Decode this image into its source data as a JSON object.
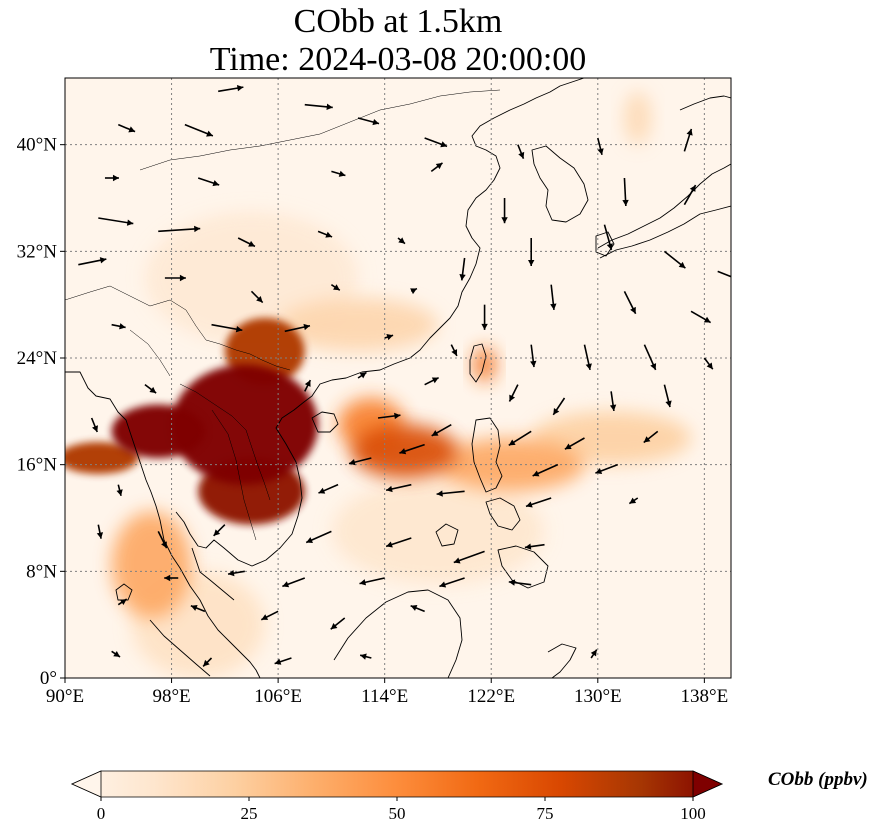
{
  "title": {
    "line1": "CObb at 1.5km",
    "line2": "Time: 2024-03-08 20:00:00"
  },
  "map": {
    "extent": {
      "lon": [
        90,
        140
      ],
      "lat": [
        0,
        45
      ]
    },
    "lon_ticks": [
      {
        "value": 90,
        "label": "90°E"
      },
      {
        "value": 98,
        "label": "98°E"
      },
      {
        "value": 106,
        "label": "106°E"
      },
      {
        "value": 114,
        "label": "114°E"
      },
      {
        "value": 122,
        "label": "122°E"
      },
      {
        "value": 130,
        "label": "130°E"
      },
      {
        "value": 138,
        "label": "138°E"
      }
    ],
    "lat_ticks": [
      {
        "value": 0,
        "label": "0°"
      },
      {
        "value": 8,
        "label": "8°N"
      },
      {
        "value": 16,
        "label": "16°N"
      },
      {
        "value": 24,
        "label": "24°N"
      },
      {
        "value": 32,
        "label": "32°N"
      },
      {
        "value": 40,
        "label": "40°N"
      }
    ],
    "gridlines": true,
    "plumes": [
      {
        "lon": 103.5,
        "lat": 19.0,
        "rlon": 5.5,
        "rlat": 4.5,
        "level": 100
      },
      {
        "lon": 97.0,
        "lat": 18.5,
        "rlon": 3.5,
        "rlat": 2.0,
        "level": 100
      },
      {
        "lon": 104.0,
        "lat": 14.0,
        "rlon": 4.0,
        "rlat": 2.5,
        "level": 95
      },
      {
        "lon": 105.0,
        "lat": 24.5,
        "rlon": 3.0,
        "rlat": 2.5,
        "level": 85
      },
      {
        "lon": 92.5,
        "lat": 16.5,
        "rlon": 3.0,
        "rlat": 1.2,
        "level": 85
      },
      {
        "lon": 115.5,
        "lat": 17.0,
        "rlon": 4.0,
        "rlat": 2.0,
        "level": 75
      },
      {
        "lon": 113.0,
        "lat": 19.0,
        "rlon": 2.5,
        "rlat": 2.0,
        "level": 55
      },
      {
        "lon": 121.5,
        "lat": 23.5,
        "rlon": 0.8,
        "rlat": 1.3,
        "level": 60
      },
      {
        "lon": 96.5,
        "lat": 8.5,
        "rlon": 3.0,
        "rlat": 4.0,
        "level": 40
      },
      {
        "lon": 123.5,
        "lat": 16.0,
        "rlon": 5.5,
        "rlat": 2.0,
        "level": 40
      },
      {
        "lon": 131.0,
        "lat": 18.0,
        "rlon": 6.0,
        "rlat": 2.0,
        "level": 25
      },
      {
        "lon": 112.0,
        "lat": 26.5,
        "rlon": 6.0,
        "rlat": 2.0,
        "level": 22
      },
      {
        "lon": 118.0,
        "lat": 11.0,
        "rlon": 8.0,
        "rlat": 4.0,
        "level": 12
      },
      {
        "lon": 104.0,
        "lat": 30.0,
        "rlon": 8.0,
        "rlat": 5.0,
        "level": 10
      },
      {
        "lon": 133.0,
        "lat": 42.0,
        "rlon": 1.0,
        "rlat": 2.0,
        "level": 20
      },
      {
        "lon": 100.0,
        "lat": 4.0,
        "rlon": 5.0,
        "rlat": 4.0,
        "level": 15
      }
    ],
    "wind_vectors": [
      {
        "lon": 101.5,
        "lat": 44.0,
        "u": 1.8,
        "v": 0.3
      },
      {
        "lon": 108.0,
        "lat": 43.0,
        "u": 2.0,
        "v": -0.2
      },
      {
        "lon": 112.0,
        "lat": 42.0,
        "u": 1.5,
        "v": -0.4
      },
      {
        "lon": 94.0,
        "lat": 41.5,
        "u": 1.2,
        "v": -0.5
      },
      {
        "lon": 99.0,
        "lat": 41.5,
        "u": 2.0,
        "v": -0.8
      },
      {
        "lon": 117.0,
        "lat": 40.5,
        "u": 1.6,
        "v": -0.6
      },
      {
        "lon": 124.0,
        "lat": 40.0,
        "u": 0.4,
        "v": -1.0
      },
      {
        "lon": 130.0,
        "lat": 40.5,
        "u": 0.3,
        "v": -1.2
      },
      {
        "lon": 136.5,
        "lat": 39.5,
        "u": 0.5,
        "v": 1.6
      },
      {
        "lon": 93.0,
        "lat": 37.5,
        "u": 1.0,
        "v": 0.0
      },
      {
        "lon": 100.0,
        "lat": 37.5,
        "u": 1.5,
        "v": -0.5
      },
      {
        "lon": 110.0,
        "lat": 38.0,
        "u": 1.0,
        "v": -0.3
      },
      {
        "lon": 117.5,
        "lat": 38.0,
        "u": 0.8,
        "v": 0.6
      },
      {
        "lon": 123.0,
        "lat": 36.0,
        "u": 0.0,
        "v": -1.8
      },
      {
        "lon": 132.0,
        "lat": 37.5,
        "u": 0.1,
        "v": -2.0
      },
      {
        "lon": 136.5,
        "lat": 35.5,
        "u": 0.8,
        "v": 1.4
      },
      {
        "lon": 92.5,
        "lat": 34.5,
        "u": 2.5,
        "v": -0.4
      },
      {
        "lon": 97.0,
        "lat": 33.5,
        "u": 3.0,
        "v": 0.2
      },
      {
        "lon": 103.0,
        "lat": 33.0,
        "u": 1.2,
        "v": -0.6
      },
      {
        "lon": 109.0,
        "lat": 33.5,
        "u": 1.0,
        "v": -0.4
      },
      {
        "lon": 115.0,
        "lat": 33.0,
        "u": 0.5,
        "v": -0.4
      },
      {
        "lon": 120.0,
        "lat": 31.5,
        "u": -0.2,
        "v": -1.6
      },
      {
        "lon": 125.0,
        "lat": 33.0,
        "u": 0.0,
        "v": -2.0
      },
      {
        "lon": 130.5,
        "lat": 34.0,
        "u": 0.5,
        "v": -1.8
      },
      {
        "lon": 135.0,
        "lat": 32.0,
        "u": 1.5,
        "v": -1.2
      },
      {
        "lon": 139.0,
        "lat": 30.5,
        "u": 1.5,
        "v": -0.6
      },
      {
        "lon": 91.0,
        "lat": 31.0,
        "u": 2.0,
        "v": 0.4
      },
      {
        "lon": 97.5,
        "lat": 30.0,
        "u": 1.5,
        "v": 0.0
      },
      {
        "lon": 104.0,
        "lat": 29.0,
        "u": 0.8,
        "v": -0.8
      },
      {
        "lon": 110.0,
        "lat": 29.5,
        "u": 0.6,
        "v": -0.4
      },
      {
        "lon": 116.0,
        "lat": 29.0,
        "u": 0.4,
        "v": 0.2
      },
      {
        "lon": 121.5,
        "lat": 28.0,
        "u": 0.0,
        "v": -1.8
      },
      {
        "lon": 126.5,
        "lat": 29.5,
        "u": 0.2,
        "v": -1.8
      },
      {
        "lon": 132.0,
        "lat": 29.0,
        "u": 0.8,
        "v": -1.6
      },
      {
        "lon": 137.0,
        "lat": 27.5,
        "u": 1.4,
        "v": -0.8
      },
      {
        "lon": 93.5,
        "lat": 26.5,
        "u": 1.0,
        "v": -0.2
      },
      {
        "lon": 101.0,
        "lat": 26.5,
        "u": 2.2,
        "v": -0.4
      },
      {
        "lon": 106.5,
        "lat": 26.0,
        "u": 1.8,
        "v": 0.4
      },
      {
        "lon": 114.0,
        "lat": 25.5,
        "u": 0.6,
        "v": 0.2
      },
      {
        "lon": 119.0,
        "lat": 25.0,
        "u": 0.4,
        "v": -0.8
      },
      {
        "lon": 125.0,
        "lat": 25.0,
        "u": 0.2,
        "v": -1.6
      },
      {
        "lon": 129.0,
        "lat": 25.0,
        "u": 0.4,
        "v": -1.8
      },
      {
        "lon": 133.5,
        "lat": 25.0,
        "u": 0.8,
        "v": -1.8
      },
      {
        "lon": 138.0,
        "lat": 24.0,
        "u": 0.6,
        "v": -0.8
      },
      {
        "lon": 96.0,
        "lat": 22.0,
        "u": 0.8,
        "v": -0.6
      },
      {
        "lon": 108.0,
        "lat": 21.5,
        "u": 0.4,
        "v": 0.8
      },
      {
        "lon": 112.0,
        "lat": 22.5,
        "u": 0.6,
        "v": 0.4
      },
      {
        "lon": 117.0,
        "lat": 22.0,
        "u": 1.0,
        "v": 0.5
      },
      {
        "lon": 124.0,
        "lat": 22.0,
        "u": -0.6,
        "v": -1.2
      },
      {
        "lon": 127.5,
        "lat": 21.0,
        "u": -0.8,
        "v": -1.2
      },
      {
        "lon": 131.0,
        "lat": 21.5,
        "u": 0.2,
        "v": -1.4
      },
      {
        "lon": 135.0,
        "lat": 22.0,
        "u": 0.4,
        "v": -1.6
      },
      {
        "lon": 92.0,
        "lat": 19.5,
        "u": 0.4,
        "v": -1.0
      },
      {
        "lon": 113.5,
        "lat": 19.5,
        "u": 1.6,
        "v": 0.2
      },
      {
        "lon": 119.0,
        "lat": 19.0,
        "u": -1.4,
        "v": -0.8
      },
      {
        "lon": 125.0,
        "lat": 18.5,
        "u": -1.6,
        "v": -1.0
      },
      {
        "lon": 129.0,
        "lat": 18.0,
        "u": -1.4,
        "v": -0.8
      },
      {
        "lon": 134.5,
        "lat": 18.5,
        "u": -1.0,
        "v": -0.8
      },
      {
        "lon": 113.0,
        "lat": 16.5,
        "u": -1.6,
        "v": -0.4
      },
      {
        "lon": 117.0,
        "lat": 17.5,
        "u": -1.8,
        "v": -0.6
      },
      {
        "lon": 127.0,
        "lat": 16.0,
        "u": -1.8,
        "v": -0.8
      },
      {
        "lon": 131.5,
        "lat": 16.0,
        "u": -1.6,
        "v": -0.6
      },
      {
        "lon": 94.0,
        "lat": 14.5,
        "u": 0.2,
        "v": -0.8
      },
      {
        "lon": 110.5,
        "lat": 14.5,
        "u": -1.4,
        "v": -0.6
      },
      {
        "lon": 116.0,
        "lat": 14.5,
        "u": -1.8,
        "v": -0.4
      },
      {
        "lon": 120.0,
        "lat": 14.0,
        "u": -2.0,
        "v": -0.2
      },
      {
        "lon": 126.5,
        "lat": 13.5,
        "u": -1.8,
        "v": -0.6
      },
      {
        "lon": 133.0,
        "lat": 13.5,
        "u": -0.6,
        "v": -0.4
      },
      {
        "lon": 92.5,
        "lat": 11.5,
        "u": 0.2,
        "v": -1.0
      },
      {
        "lon": 97.0,
        "lat": 11.0,
        "u": 0.6,
        "v": -1.2
      },
      {
        "lon": 102.0,
        "lat": 11.5,
        "u": -0.8,
        "v": -0.8
      },
      {
        "lon": 110.0,
        "lat": 11.0,
        "u": -1.8,
        "v": -0.8
      },
      {
        "lon": 116.0,
        "lat": 10.5,
        "u": -1.8,
        "v": -0.6
      },
      {
        "lon": 121.5,
        "lat": 9.5,
        "u": -2.2,
        "v": -0.8
      },
      {
        "lon": 126.0,
        "lat": 10.0,
        "u": -1.4,
        "v": -0.2
      },
      {
        "lon": 98.5,
        "lat": 7.5,
        "u": -1.0,
        "v": 0.0
      },
      {
        "lon": 103.5,
        "lat": 8.0,
        "u": -1.2,
        "v": -0.2
      },
      {
        "lon": 108.0,
        "lat": 7.5,
        "u": -1.6,
        "v": -0.6
      },
      {
        "lon": 114.0,
        "lat": 7.5,
        "u": -1.8,
        "v": -0.4
      },
      {
        "lon": 120.0,
        "lat": 7.5,
        "u": -1.8,
        "v": -0.6
      },
      {
        "lon": 125.0,
        "lat": 7.0,
        "u": -1.6,
        "v": 0.2
      },
      {
        "lon": 94.0,
        "lat": 5.5,
        "u": 0.6,
        "v": 0.4
      },
      {
        "lon": 100.5,
        "lat": 5.0,
        "u": -1.0,
        "v": 0.4
      },
      {
        "lon": 106.0,
        "lat": 5.0,
        "u": -1.2,
        "v": -0.6
      },
      {
        "lon": 111.0,
        "lat": 4.5,
        "u": -1.0,
        "v": -0.8
      },
      {
        "lon": 117.0,
        "lat": 5.0,
        "u": -1.0,
        "v": 0.4
      },
      {
        "lon": 93.5,
        "lat": 2.0,
        "u": 0.6,
        "v": -0.4
      },
      {
        "lon": 101.0,
        "lat": 1.5,
        "u": -0.6,
        "v": -0.6
      },
      {
        "lon": 107.0,
        "lat": 1.5,
        "u": -1.2,
        "v": -0.4
      },
      {
        "lon": 113.0,
        "lat": 1.5,
        "u": -0.8,
        "v": 0.2
      },
      {
        "lon": 129.5,
        "lat": 1.5,
        "u": 0.4,
        "v": 0.6
      }
    ]
  },
  "colorbar": {
    "title": "CObb (ppbv)",
    "min": 0,
    "max": 100,
    "extend": "both",
    "colormap": [
      "#fff5eb",
      "#fee6ce",
      "#fdd0a2",
      "#fdae6b",
      "#fd8d3c",
      "#f16913",
      "#d94801",
      "#a63603",
      "#7f0000"
    ],
    "ticks": [
      {
        "value": 0,
        "label": "0"
      },
      {
        "value": 25,
        "label": "25"
      },
      {
        "value": 50,
        "label": "50"
      },
      {
        "value": 75,
        "label": "75"
      },
      {
        "value": 100,
        "label": "100"
      }
    ]
  },
  "colors": {
    "gridline": "#808080",
    "coastline": "#000000",
    "wind_arrow": "#000000"
  }
}
